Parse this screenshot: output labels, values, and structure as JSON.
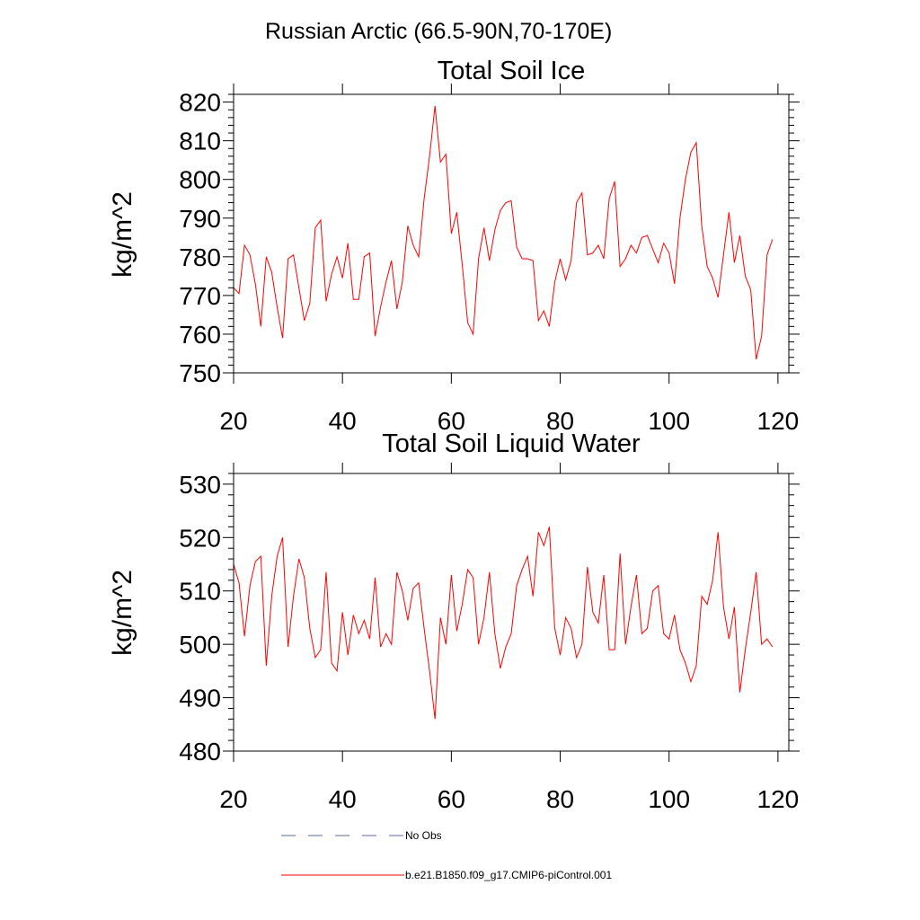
{
  "figure_title": "Russian Arctic (66.5-90N,70-170E)",
  "colors": {
    "model_line": "#ff0000",
    "obs_line": "#5a6aa0",
    "axis": "#000000"
  },
  "legend": {
    "entries": [
      {
        "label": "No Obs",
        "style": "dashed",
        "color": "#5a6aa0"
      },
      {
        "label": "b.e21.B1850.f09_g17.CMIP6-piControl.001",
        "style": "solid",
        "color": "#ff0000"
      }
    ]
  },
  "chart_data": [
    {
      "type": "line",
      "title": "Total Soil Ice",
      "xlabel": "",
      "ylabel": "kg/m^2",
      "xlim": [
        20,
        122
      ],
      "ylim": [
        750,
        822
      ],
      "xticks": [
        20,
        40,
        60,
        80,
        100,
        120
      ],
      "yticks": [
        750,
        760,
        770,
        780,
        790,
        800,
        810,
        820
      ],
      "series": [
        {
          "name": "b.e21.B1850.f09_g17.CMIP6-piControl.001",
          "x": [
            20,
            21,
            22,
            23,
            24,
            25,
            26,
            27,
            28,
            29,
            30,
            31,
            32,
            33,
            34,
            35,
            36,
            37,
            38,
            39,
            40,
            41,
            42,
            43,
            44,
            45,
            46,
            47,
            48,
            49,
            50,
            51,
            52,
            53,
            54,
            55,
            56,
            57,
            58,
            59,
            60,
            61,
            62,
            63,
            64,
            65,
            66,
            67,
            68,
            69,
            70,
            71,
            72,
            73,
            74,
            75,
            76,
            77,
            78,
            79,
            80,
            81,
            82,
            83,
            84,
            85,
            86,
            87,
            88,
            89,
            90,
            91,
            92,
            93,
            94,
            95,
            96,
            97,
            98,
            99,
            100,
            101,
            102,
            103,
            104,
            105,
            106,
            107,
            108,
            109,
            110,
            111,
            112,
            113,
            114,
            115,
            116,
            117,
            118,
            119
          ],
          "values": [
            772,
            770.5,
            783,
            780.5,
            773,
            762,
            780,
            776,
            767,
            759,
            779.5,
            780.5,
            772,
            763.5,
            768,
            787.5,
            789.5,
            768.5,
            775.5,
            780,
            774.5,
            783.5,
            769,
            769,
            780,
            781,
            759.5,
            767,
            773.5,
            779,
            766.5,
            773.5,
            788,
            783,
            780,
            795,
            806,
            819,
            804.5,
            806.5,
            786,
            791.5,
            778,
            763,
            760,
            779.5,
            787.5,
            779,
            787,
            792,
            794,
            794.5,
            782.5,
            779.5,
            779.5,
            779,
            763.5,
            766,
            762,
            773.5,
            779.5,
            774,
            779,
            794,
            796.5,
            780.5,
            781,
            783,
            779.5,
            795,
            799.5,
            777.5,
            779.5,
            783,
            781,
            785,
            785.5,
            782,
            778.5,
            783.5,
            781,
            773,
            790,
            800,
            807,
            809.5,
            788,
            777.5,
            774.5,
            769.5,
            780.5,
            791.5,
            778.5,
            785.5,
            775,
            771.5,
            753.5,
            759.5,
            780.5,
            784.5
          ]
        }
      ]
    },
    {
      "type": "line",
      "title": "Total Soil Liquid Water",
      "xlabel": "",
      "ylabel": "kg/m^2",
      "xlim": [
        20,
        122
      ],
      "ylim": [
        480,
        532
      ],
      "xticks": [
        20,
        40,
        60,
        80,
        100,
        120
      ],
      "yticks": [
        480,
        490,
        500,
        510,
        520,
        530
      ],
      "series": [
        {
          "name": "b.e21.B1850.f09_g17.CMIP6-piControl.001",
          "x": [
            20,
            21,
            22,
            23,
            24,
            25,
            26,
            27,
            28,
            29,
            30,
            31,
            32,
            33,
            34,
            35,
            36,
            37,
            38,
            39,
            40,
            41,
            42,
            43,
            44,
            45,
            46,
            47,
            48,
            49,
            50,
            51,
            52,
            53,
            54,
            55,
            56,
            57,
            58,
            59,
            60,
            61,
            62,
            63,
            64,
            65,
            66,
            67,
            68,
            69,
            70,
            71,
            72,
            73,
            74,
            75,
            76,
            77,
            78,
            79,
            80,
            81,
            82,
            83,
            84,
            85,
            86,
            87,
            88,
            89,
            90,
            91,
            92,
            93,
            94,
            95,
            96,
            97,
            98,
            99,
            100,
            101,
            102,
            103,
            104,
            105,
            106,
            107,
            108,
            109,
            110,
            111,
            112,
            113,
            114,
            115,
            116,
            117,
            118,
            119
          ],
          "values": [
            515,
            511.5,
            501.5,
            511,
            515.5,
            516.5,
            496,
            509,
            516.5,
            520,
            499.5,
            509,
            516,
            512.5,
            503,
            497.5,
            499,
            513.5,
            496.5,
            495,
            506,
            498,
            505.5,
            502,
            504.5,
            501,
            512.5,
            499.5,
            502,
            500,
            513.5,
            510,
            504.5,
            510.5,
            511.5,
            503,
            495,
            486,
            505,
            500,
            513,
            502.5,
            507.5,
            514,
            512.5,
            500,
            505,
            513.5,
            502,
            495.5,
            499.5,
            502,
            511,
            514,
            516.5,
            509,
            521,
            518.5,
            522,
            503,
            498,
            505,
            503,
            497.5,
            500,
            514.5,
            506,
            504,
            513,
            499,
            499,
            517,
            500,
            507,
            513,
            502,
            503,
            510,
            511,
            502,
            501,
            505.5,
            499,
            496.5,
            493,
            496,
            509,
            507.5,
            512,
            521,
            507,
            501,
            507,
            491,
            499,
            506,
            513.5,
            500,
            501,
            499.5
          ]
        }
      ]
    }
  ]
}
